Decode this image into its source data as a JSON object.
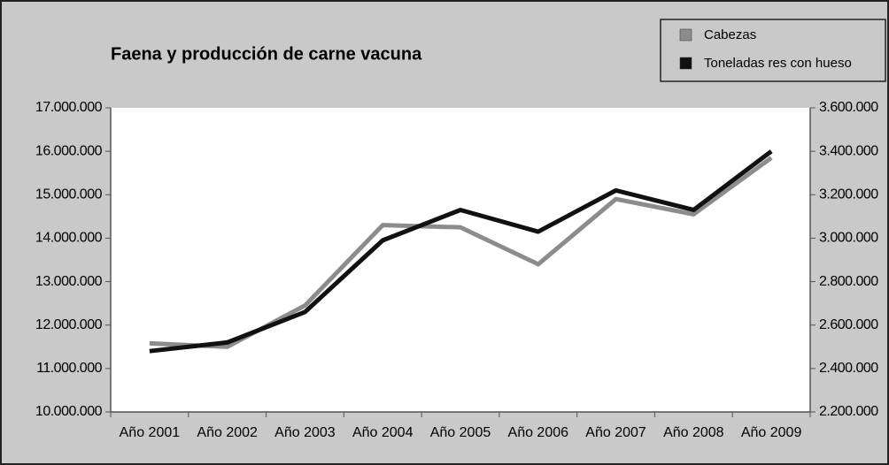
{
  "chart_data": {
    "type": "line",
    "title": "Faena y producción de carne vacuna",
    "categories": [
      "Año 2001",
      "Año 2002",
      "Año 2003",
      "Año 2004",
      "Año 2005",
      "Año 2006",
      "Año 2007",
      "Año 2008",
      "Año 2009"
    ],
    "series": [
      {
        "name": "Cabezas",
        "color": "#8c8c8c",
        "values": [
          11580000,
          11500000,
          12450000,
          14300000,
          14250000,
          13400000,
          14900000,
          14550000,
          15850000
        ]
      },
      {
        "name": "Toneladas res con hueso",
        "color": "#111111",
        "axis": "y2",
        "values": [
          2480000,
          2520000,
          2660000,
          2990000,
          3130000,
          3030000,
          3220000,
          3130000,
          3400000
        ]
      }
    ],
    "ylim": [
      10000000,
      17000000
    ],
    "yticks": [
      {
        "value": 10000000,
        "label": "10.000.000"
      },
      {
        "value": 11000000,
        "label": "11.000.000"
      },
      {
        "value": 12000000,
        "label": "12.000.000"
      },
      {
        "value": 13000000,
        "label": "13.000.000"
      },
      {
        "value": 14000000,
        "label": "14.000.000"
      },
      {
        "value": 15000000,
        "label": "15.000.000"
      },
      {
        "value": 16000000,
        "label": "16.000.000"
      },
      {
        "value": 17000000,
        "label": "17.000.000"
      }
    ],
    "y2lim": [
      2200000,
      3600000
    ],
    "y2ticks": [
      {
        "value": 2200000,
        "label": "2.200.000"
      },
      {
        "value": 2400000,
        "label": "2.400.000"
      },
      {
        "value": 2600000,
        "label": "2.600.000"
      },
      {
        "value": 2800000,
        "label": "2.800.000"
      },
      {
        "value": 3000000,
        "label": "3.000.000"
      },
      {
        "value": 3200000,
        "label": "3.200.000"
      },
      {
        "value": 3400000,
        "label": "3.400.000"
      },
      {
        "value": 3600000,
        "label": "3.600.000"
      }
    ],
    "legend": "top-right",
    "grid": false
  }
}
